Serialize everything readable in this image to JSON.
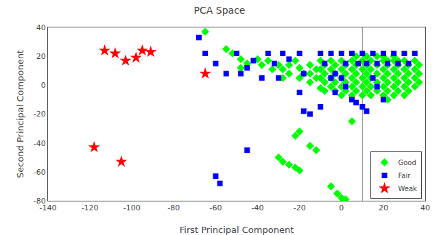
{
  "chart_data": {
    "type": "scatter",
    "title": "PCA Space",
    "xlabel": "First Principal Component",
    "ylabel": "Second Principal Component",
    "xlim": [
      -140,
      40
    ],
    "ylim": [
      -80,
      40
    ],
    "xticks": [
      -140,
      -120,
      -100,
      -80,
      -60,
      -40,
      -20,
      0,
      20,
      40
    ],
    "yticks": [
      -80,
      -60,
      -40,
      -20,
      0,
      20,
      40
    ],
    "grid": false,
    "legend": "lower right",
    "vline": {
      "x": 10,
      "color": "#888888"
    },
    "series": [
      {
        "name": "Good",
        "color": "#00FF00",
        "marker": "diamond",
        "values": [
          [
            -65,
            37
          ],
          [
            -55,
            25
          ],
          [
            -52,
            22
          ],
          [
            -48,
            18
          ],
          [
            -45,
            15
          ],
          [
            -48,
            12
          ],
          [
            -40,
            18
          ],
          [
            -38,
            14
          ],
          [
            -35,
            17
          ],
          [
            -33,
            11
          ],
          [
            -30,
            14
          ],
          [
            -28,
            11
          ],
          [
            -28,
            5
          ],
          [
            -25,
            14
          ],
          [
            -25,
            8
          ],
          [
            -22,
            17
          ],
          [
            -20,
            12
          ],
          [
            -20,
            5
          ],
          [
            -18,
            8
          ],
          [
            -15,
            14
          ],
          [
            -15,
            8
          ],
          [
            -15,
            2
          ],
          [
            -12,
            11
          ],
          [
            -12,
            5
          ],
          [
            -10,
            17
          ],
          [
            -10,
            11
          ],
          [
            -10,
            5
          ],
          [
            -10,
            -2
          ],
          [
            -8,
            14
          ],
          [
            -8,
            8
          ],
          [
            -8,
            2
          ],
          [
            -8,
            -4
          ],
          [
            -5,
            17
          ],
          [
            -5,
            11
          ],
          [
            -5,
            5
          ],
          [
            -5,
            -1
          ],
          [
            -3,
            14
          ],
          [
            -3,
            8
          ],
          [
            -3,
            2
          ],
          [
            -3,
            -4
          ],
          [
            0,
            17
          ],
          [
            0,
            11
          ],
          [
            0,
            5
          ],
          [
            0,
            -1
          ],
          [
            0,
            -7
          ],
          [
            2,
            14
          ],
          [
            2,
            8
          ],
          [
            2,
            2
          ],
          [
            2,
            -4
          ],
          [
            5,
            17
          ],
          [
            5,
            11
          ],
          [
            5,
            5
          ],
          [
            5,
            -1
          ],
          [
            5,
            -7
          ],
          [
            7,
            20
          ],
          [
            7,
            14
          ],
          [
            7,
            8
          ],
          [
            7,
            2
          ],
          [
            7,
            -4
          ],
          [
            10,
            17
          ],
          [
            10,
            11
          ],
          [
            10,
            5
          ],
          [
            10,
            -1
          ],
          [
            10,
            -7
          ],
          [
            12,
            20
          ],
          [
            12,
            14
          ],
          [
            12,
            8
          ],
          [
            12,
            2
          ],
          [
            12,
            -4
          ],
          [
            14,
            17
          ],
          [
            14,
            11
          ],
          [
            14,
            5
          ],
          [
            14,
            -1
          ],
          [
            14,
            -7
          ],
          [
            17,
            20
          ],
          [
            17,
            14
          ],
          [
            17,
            8
          ],
          [
            17,
            2
          ],
          [
            17,
            -4
          ],
          [
            20,
            17
          ],
          [
            20,
            11
          ],
          [
            20,
            5
          ],
          [
            20,
            -1
          ],
          [
            20,
            -7
          ],
          [
            22,
            14
          ],
          [
            22,
            8
          ],
          [
            22,
            2
          ],
          [
            22,
            -4
          ],
          [
            22,
            -10
          ],
          [
            25,
            17
          ],
          [
            25,
            11
          ],
          [
            25,
            5
          ],
          [
            25,
            -1
          ],
          [
            25,
            -7
          ],
          [
            27,
            14
          ],
          [
            27,
            8
          ],
          [
            27,
            2
          ],
          [
            27,
            -4
          ],
          [
            30,
            17
          ],
          [
            30,
            11
          ],
          [
            30,
            5
          ],
          [
            30,
            -1
          ],
          [
            30,
            -7
          ],
          [
            32,
            14
          ],
          [
            32,
            8
          ],
          [
            32,
            2
          ],
          [
            32,
            -4
          ],
          [
            35,
            17
          ],
          [
            35,
            11
          ],
          [
            35,
            5
          ],
          [
            35,
            -1
          ],
          [
            37,
            14
          ],
          [
            37,
            8
          ],
          [
            37,
            2
          ],
          [
            20,
            20
          ],
          [
            22,
            17
          ],
          [
            25,
            20
          ],
          [
            27,
            17
          ],
          [
            -20,
            -32
          ],
          [
            -22,
            -35
          ],
          [
            -30,
            -50
          ],
          [
            -28,
            -53
          ],
          [
            -25,
            -55
          ],
          [
            -22,
            -57
          ],
          [
            -20,
            -59
          ],
          [
            -5,
            -70
          ],
          [
            -2,
            -75
          ],
          [
            0,
            -78
          ],
          [
            2,
            -79
          ],
          [
            -15,
            -42
          ],
          [
            -12,
            -45
          ],
          [
            5,
            -25
          ]
        ]
      },
      {
        "name": "Fair",
        "color": "#0000FF",
        "marker": "square",
        "values": [
          [
            -68,
            33
          ],
          [
            -65,
            22
          ],
          [
            -60,
            15
          ],
          [
            -55,
            8
          ],
          [
            -50,
            22
          ],
          [
            -48,
            8
          ],
          [
            -45,
            12
          ],
          [
            -42,
            17
          ],
          [
            -35,
            22
          ],
          [
            -32,
            15
          ],
          [
            -28,
            22
          ],
          [
            -25,
            18
          ],
          [
            -20,
            22
          ],
          [
            -18,
            8
          ],
          [
            -60,
            -63
          ],
          [
            -58,
            -68
          ],
          [
            -15,
            -20
          ],
          [
            -10,
            -15
          ],
          [
            -5,
            22
          ],
          [
            -3,
            8
          ],
          [
            0,
            22
          ],
          [
            2,
            15
          ],
          [
            5,
            22
          ],
          [
            8,
            15
          ],
          [
            10,
            22
          ],
          [
            12,
            15
          ],
          [
            15,
            22
          ],
          [
            17,
            15
          ],
          [
            20,
            22
          ],
          [
            22,
            15
          ],
          [
            25,
            22
          ],
          [
            27,
            15
          ],
          [
            30,
            22
          ],
          [
            32,
            15
          ],
          [
            35,
            22
          ],
          [
            -45,
            -45
          ],
          [
            -38,
            5
          ],
          [
            -30,
            5
          ],
          [
            -20,
            -5
          ],
          [
            -18,
            -18
          ],
          [
            -10,
            22
          ],
          [
            -8,
            15
          ],
          [
            -5,
            5
          ],
          [
            -3,
            -5
          ],
          [
            0,
            5
          ],
          [
            2,
            -1
          ],
          [
            5,
            -10
          ],
          [
            7,
            -12
          ],
          [
            10,
            -15
          ],
          [
            12,
            -18
          ],
          [
            15,
            5
          ],
          [
            17,
            -1
          ],
          [
            20,
            -10
          ]
        ]
      },
      {
        "name": "Weak",
        "color": "#FF0000",
        "marker": "star",
        "values": [
          [
            -118,
            -43
          ],
          [
            -105,
            -53
          ],
          [
            -113,
            24
          ],
          [
            -108,
            22
          ],
          [
            -103,
            17
          ],
          [
            -98,
            19
          ],
          [
            -95,
            24
          ],
          [
            -91,
            23
          ],
          [
            -65,
            8
          ]
        ]
      }
    ]
  }
}
